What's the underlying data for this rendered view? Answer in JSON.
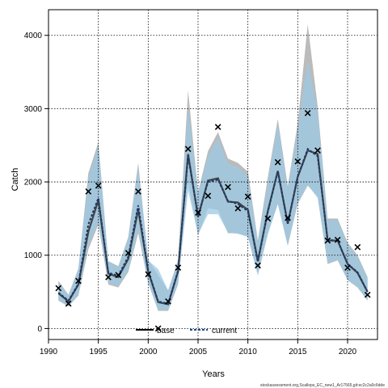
{
  "chart_data": {
    "type": "line",
    "xlabel": "Years",
    "ylabel": "Catch",
    "xlim": [
      1990,
      2023
    ],
    "ylim": [
      -150,
      4350
    ],
    "xticks": [
      1990,
      1995,
      2000,
      2005,
      2010,
      2015,
      2020
    ],
    "yticks": [
      0,
      1000,
      2000,
      3000,
      4000
    ],
    "grid": true,
    "legend_position": "bottom-center",
    "colors": {
      "base": "#000000",
      "current_band": "#9ccae6",
      "base_band": "#b4b4b4",
      "observed": "#000000"
    },
    "x": [
      1991,
      1992,
      1993,
      1994,
      1995,
      1996,
      1997,
      1998,
      1999,
      2000,
      2001,
      2002,
      2003,
      2004,
      2005,
      2006,
      2007,
      2008,
      2009,
      2010,
      2011,
      2012,
      2013,
      2014,
      2015,
      2016,
      2017,
      2018,
      2019,
      2020,
      2021,
      2022
    ],
    "observed": [
      550,
      340,
      650,
      1870,
      1950,
      700,
      730,
      1030,
      1870,
      740,
      0,
      370,
      830,
      2450,
      1580,
      1810,
      2750,
      1930,
      1640,
      1800,
      860,
      1500,
      2270,
      1510,
      2280,
      2940,
      2430,
      1200,
      1210,
      830,
      1110,
      460
    ],
    "series": [
      {
        "name": "base",
        "values": [
          480,
          370,
          600,
          1320,
          1750,
          750,
          700,
          950,
          1620,
          780,
          360,
          330,
          780,
          2380,
          1520,
          2020,
          2050,
          1730,
          1720,
          1620,
          920,
          1600,
          2150,
          1430,
          2070,
          2430,
          2380,
          1200,
          1200,
          880,
          760,
          500
        ],
        "lower": [
          380,
          300,
          450,
          1080,
          1420,
          600,
          560,
          770,
          1300,
          620,
          240,
          240,
          600,
          2000,
          1270,
          1640,
          1620,
          1300,
          1300,
          1260,
          740,
          1300,
          1700,
          1130,
          1700,
          1950,
          1800,
          880,
          930,
          660,
          560,
          380
        ],
        "upper": [
          650,
          460,
          820,
          2120,
          2540,
          920,
          850,
          1250,
          2260,
          940,
          730,
          520,
          940,
          3250,
          1860,
          2420,
          2680,
          2320,
          2260,
          2140,
          1200,
          2060,
          2860,
          1940,
          2800,
          4150,
          3030,
          1500,
          1500,
          1170,
          1000,
          700
        ]
      },
      {
        "name": "current",
        "values": [
          490,
          380,
          610,
          1420,
          1780,
          760,
          720,
          980,
          1680,
          790,
          370,
          340,
          790,
          2360,
          1540,
          2000,
          2030,
          1740,
          1700,
          1600,
          910,
          1590,
          2150,
          1430,
          2070,
          2450,
          2350,
          1210,
          1200,
          880,
          770,
          500
        ],
        "lower": [
          390,
          300,
          460,
          1130,
          1450,
          620,
          580,
          790,
          1340,
          630,
          250,
          250,
          610,
          1880,
          1280,
          1560,
          1560,
          1310,
          1290,
          1250,
          720,
          1280,
          1700,
          1130,
          1710,
          1960,
          1780,
          890,
          940,
          660,
          570,
          380
        ],
        "upper": [
          640,
          450,
          810,
          2050,
          2500,
          910,
          840,
          1230,
          2200,
          930,
          810,
          520,
          930,
          3020,
          1850,
          2350,
          2600,
          2250,
          2200,
          2080,
          1170,
          2000,
          2800,
          1910,
          2700,
          3650,
          2960,
          1480,
          1480,
          1150,
          980,
          690
        ]
      }
    ]
  },
  "footer": "stockassessment.org,Scallops_EC_new1_Ar17565,git:ec2c2a0c6dde"
}
